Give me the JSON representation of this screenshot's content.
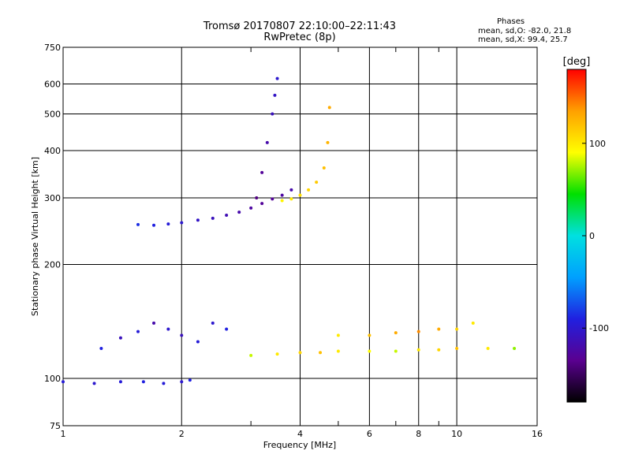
{
  "header": {
    "title_line1": "Tromsø 20170807 22:10:00–22:11:43",
    "title_line2": "RwPretec (8p)",
    "phases_label": "Phases",
    "phases_o": "mean, sd,O: -82.0, 21.8",
    "phases_x": "mean, sd,X:  99.4, 25.7"
  },
  "chart_data": {
    "type": "scatter",
    "title": "Tromsø 20170807 22:10:00–22:11:43",
    "subtitle": "RwPretec (8p)",
    "xlabel": "Frequency [MHz]",
    "ylabel": "Stationary phase Virtual Height [km]",
    "x_scale": "log",
    "y_scale": "log",
    "xlim": [
      1,
      16
    ],
    "ylim": [
      75,
      750
    ],
    "x_ticks": [
      1,
      2,
      4,
      6,
      8,
      10,
      16
    ],
    "x_minor": [
      3,
      5,
      7,
      9
    ],
    "y_ticks": [
      75,
      100,
      200,
      300,
      400,
      500,
      600,
      750
    ],
    "grid": true,
    "colorbar": {
      "label": "[deg]",
      "range": [
        -180,
        180
      ],
      "ticks": [
        100,
        0,
        -100
      ],
      "colors": [
        "#000000",
        "#5a0090",
        "#2020e0",
        "#00a0ff",
        "#00e0e0",
        "#00e000",
        "#ffff00",
        "#ffa000",
        "#ff0000"
      ]
    },
    "series": [
      {
        "x": [
          1.0,
          1.2,
          1.4,
          1.6,
          1.8,
          2.0,
          2.1
        ],
        "y": [
          98,
          97,
          98,
          98,
          97,
          98,
          99
        ],
        "phase": [
          -95,
          -100,
          -95,
          -90,
          -95,
          -100,
          -90
        ]
      },
      {
        "x": [
          1.25,
          1.4,
          1.55,
          1.7,
          1.85,
          2.0,
          2.2,
          2.4,
          2.6
        ],
        "y": [
          120,
          128,
          133,
          140,
          135,
          130,
          125,
          140,
          135
        ],
        "phase": [
          -90,
          -110,
          -95,
          -120,
          -100,
          -110,
          -95,
          -100,
          -90
        ]
      },
      {
        "x": [
          1.55,
          1.7,
          1.85,
          2.0,
          2.2,
          2.4,
          2.6,
          2.8,
          3.0,
          3.2,
          3.4,
          3.6,
          3.8
        ],
        "y": [
          255,
          254,
          256,
          258,
          262,
          265,
          270,
          275,
          282,
          290,
          298,
          305,
          315
        ],
        "phase": [
          -85,
          -90,
          -95,
          -100,
          -105,
          -110,
          -115,
          -120,
          -125,
          -130,
          -130,
          -125,
          -120
        ]
      },
      {
        "x": [
          3.1,
          3.2,
          3.3,
          3.4,
          3.45,
          3.5
        ],
        "y": [
          300,
          350,
          420,
          500,
          560,
          620
        ],
        "phase": [
          -140,
          -130,
          -120,
          -110,
          -105,
          -100
        ]
      },
      {
        "x": [
          3.6,
          3.8,
          4.0,
          4.2,
          4.4,
          4.6,
          4.7,
          4.75
        ],
        "y": [
          295,
          298,
          305,
          315,
          330,
          360,
          420,
          520
        ],
        "phase": [
          95,
          100,
          105,
          110,
          115,
          120,
          125,
          130
        ]
      },
      {
        "x": [
          3.0,
          3.5,
          4.0,
          4.5,
          5.0,
          6.0,
          7.0,
          8.0,
          9.0,
          10.0,
          12.0,
          14.0
        ],
        "y": [
          115,
          116,
          117,
          117,
          118,
          118,
          118,
          119,
          119,
          120,
          120,
          120
        ],
        "phase": [
          80,
          100,
          110,
          120,
          100,
          90,
          80,
          100,
          110,
          120,
          100,
          70
        ]
      },
      {
        "x": [
          5.0,
          6.0,
          7.0,
          8.0,
          9.0,
          10.0,
          11.0
        ],
        "y": [
          130,
          130,
          132,
          133,
          135,
          135,
          140
        ],
        "phase": [
          100,
          120,
          130,
          140,
          130,
          110,
          100
        ]
      }
    ]
  }
}
